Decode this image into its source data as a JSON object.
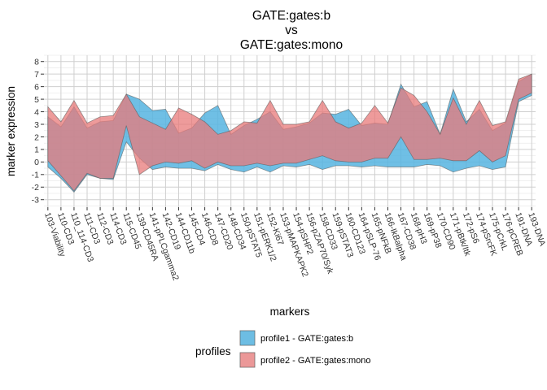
{
  "chart_data": {
    "type": "area",
    "title": [
      "GATE:gates:b",
      "vs",
      "GATE:gates:mono"
    ],
    "xlabel": "markers",
    "ylabel": "marker expression",
    "ylim": [
      -3.6,
      8.5
    ],
    "yticks": [
      -3,
      -2,
      -1,
      0,
      1,
      2,
      3,
      4,
      5,
      6,
      7,
      8
    ],
    "grid": true,
    "legend": {
      "title": "profiles",
      "placement": "bottom"
    },
    "categories": [
      "103-Viability",
      "110-CD3",
      "110_114-CD3",
      "111-CD3",
      "112-CD3",
      "114-CD3",
      "115-CD45",
      "139-CD45RA",
      "141-pPLCgamma2",
      "142-CD19",
      "144-CD11b",
      "145-CD4",
      "146-CD8",
      "147-CD20",
      "148-CD34",
      "150-pSTAT5",
      "151-pERK1/2",
      "152-Ki67",
      "153-pMAPKAPK2",
      "154-pSHP2",
      "156-pZAP70/Syk",
      "158-CD33",
      "159-pSTAT3",
      "160-CD123",
      "164-pSLP-76",
      "165-pNFkB",
      "166-IkBalpha",
      "167-CD38",
      "168-pH3",
      "169-pP38",
      "170-CD90",
      "171-pBtk/Itk",
      "172-pS6",
      "174-pSrcFK",
      "175-pCrkL",
      "176-pCREB",
      "191-DNA",
      "193-DNA"
    ],
    "series": [
      {
        "name": "profile1 - GATE:gates:b",
        "color": "#56B4E0",
        "upper": [
          3.6,
          2.8,
          4.4,
          2.7,
          3.2,
          3.3,
          5.4,
          5.0,
          4.1,
          4.2,
          2.3,
          2.7,
          3.9,
          4.5,
          2.2,
          2.9,
          3.4,
          4.0,
          2.6,
          2.8,
          3.1,
          3.9,
          3.8,
          4.2,
          2.9,
          3.1,
          3.0,
          6.2,
          4.4,
          4.8,
          2.2,
          5.8,
          3.2,
          4.2,
          2.5,
          3.1,
          6.4,
          7.0
        ],
        "lower": [
          -0.4,
          -1.3,
          -2.4,
          -1.0,
          -1.3,
          -1.4,
          1.6,
          0.3,
          -0.6,
          -0.4,
          -0.5,
          -0.5,
          -0.7,
          -0.2,
          -0.6,
          -0.8,
          -0.4,
          -0.8,
          -0.3,
          -0.4,
          -0.2,
          -0.6,
          -0.3,
          -0.3,
          -0.4,
          -0.3,
          -0.4,
          -0.4,
          -0.4,
          -0.2,
          -0.3,
          -0.8,
          -0.5,
          -0.3,
          -0.6,
          -0.4,
          4.8,
          5.3
        ]
      },
      {
        "name": "profile2 - GATE:gates:mono",
        "color": "#E8797A",
        "upper": [
          4.4,
          3.2,
          4.9,
          3.1,
          3.6,
          3.7,
          5.4,
          3.6,
          3.1,
          2.6,
          4.3,
          3.8,
          3.2,
          2.2,
          2.5,
          3.2,
          3.1,
          4.9,
          3.0,
          3.0,
          3.2,
          4.9,
          3.2,
          2.7,
          3.1,
          4.5,
          3.1,
          5.9,
          5.3,
          4.0,
          2.2,
          5.1,
          3.0,
          4.9,
          2.9,
          3.2,
          6.6,
          7.0
        ],
        "lower": [
          0.1,
          -1.1,
          -2.3,
          -0.9,
          -1.3,
          -1.3,
          2.9,
          -1.0,
          -0.3,
          0.0,
          -0.1,
          0.1,
          -0.5,
          0.0,
          -0.3,
          -0.3,
          -0.1,
          -0.3,
          -0.1,
          -0.1,
          0.2,
          0.5,
          0.1,
          0.0,
          0.0,
          0.3,
          0.3,
          2.0,
          0.2,
          0.2,
          0.3,
          0.1,
          0.1,
          0.9,
          0.0,
          0.5,
          5.0,
          5.5
        ]
      }
    ]
  }
}
